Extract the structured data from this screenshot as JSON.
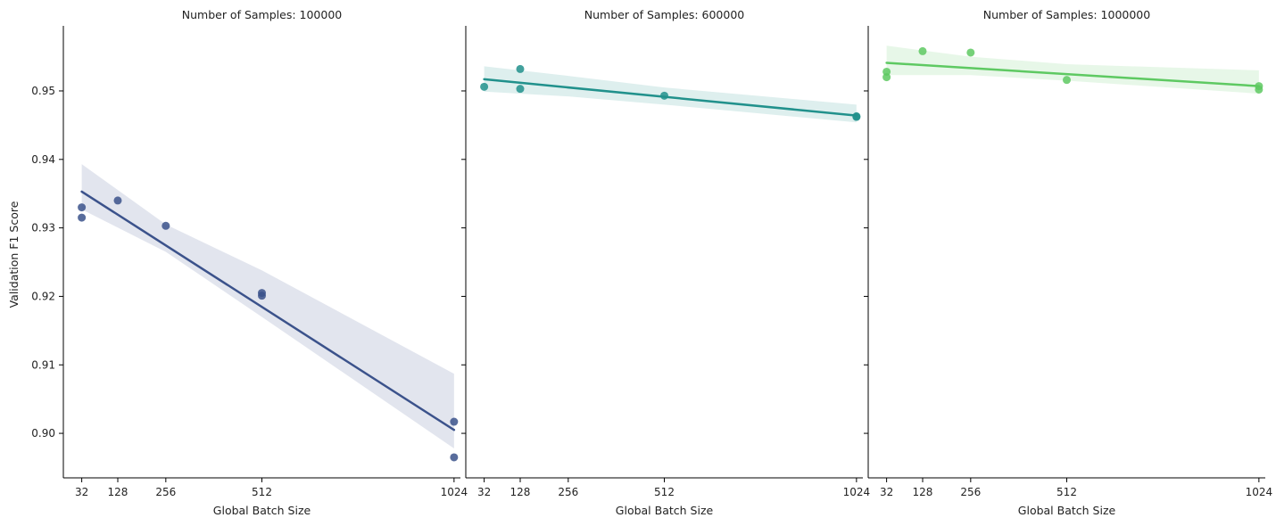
{
  "chart_data": [
    {
      "type": "scatter",
      "title": "Number of Samples: 100000",
      "xlabel": "Global Batch Size",
      "ylabel": "Validation F1 Score",
      "x_ticks": [
        32,
        128,
        256,
        512,
        1024
      ],
      "y_ticks": [
        0.9,
        0.91,
        0.92,
        0.93,
        0.94,
        0.95
      ],
      "y_tick_labels": [
        "0.90",
        "0.91",
        "0.92",
        "0.93",
        "0.94",
        "0.95"
      ],
      "xlim": [
        -17,
        1041
      ],
      "ylim": [
        0.8935,
        0.9595
      ],
      "color": "#3b528b",
      "points": {
        "x": [
          32,
          32,
          128,
          256,
          512,
          512,
          1024,
          1024
        ],
        "y": [
          0.933,
          0.9315,
          0.934,
          0.9303,
          0.9205,
          0.9201,
          0.9017,
          0.8965
        ]
      },
      "fit_line": {
        "x": [
          32,
          1024
        ],
        "y": [
          0.9353,
          0.9005
        ]
      },
      "confidence_band": {
        "x": [
          32,
          256,
          512,
          1024
        ],
        "upper": [
          0.9393,
          0.9305,
          0.9238,
          0.9087
        ],
        "lower": [
          0.9327,
          0.9265,
          0.917,
          0.8978
        ]
      },
      "grid": false
    },
    {
      "type": "scatter",
      "title": "Number of Samples: 600000",
      "xlabel": "Global Batch Size",
      "ylabel": "",
      "x_ticks": [
        32,
        128,
        256,
        512,
        1024
      ],
      "y_ticks": [
        0.9,
        0.91,
        0.92,
        0.93,
        0.94,
        0.95
      ],
      "y_tick_labels": [
        "",
        "",
        "",
        "",
        "",
        ""
      ],
      "xlim": [
        -17,
        1041
      ],
      "ylim": [
        0.8935,
        0.9595
      ],
      "color": "#21918c",
      "points": {
        "x": [
          32,
          128,
          128,
          512,
          1024,
          1024
        ],
        "y": [
          0.9506,
          0.9532,
          0.9503,
          0.9493,
          0.9463,
          0.9462
        ]
      },
      "fit_line": {
        "x": [
          32,
          1024
        ],
        "y": [
          0.9517,
          0.9464
        ]
      },
      "confidence_band": {
        "x": [
          32,
          256,
          512,
          1024
        ],
        "upper": [
          0.9536,
          0.9522,
          0.9505,
          0.948
        ],
        "lower": [
          0.9499,
          0.9492,
          0.948,
          0.9454
        ]
      },
      "grid": false
    },
    {
      "type": "scatter",
      "title": "Number of Samples: 1000000",
      "xlabel": "Global Batch Size",
      "ylabel": "",
      "x_ticks": [
        32,
        128,
        256,
        512,
        1024
      ],
      "y_ticks": [
        0.9,
        0.91,
        0.92,
        0.93,
        0.94,
        0.95
      ],
      "y_tick_labels": [
        "",
        "",
        "",
        "",
        "",
        ""
      ],
      "xlim": [
        -17,
        1041
      ],
      "ylim": [
        0.8935,
        0.9595
      ],
      "color": "#5ec962",
      "points": {
        "x": [
          32,
          32,
          128,
          256,
          512,
          1024,
          1024
        ],
        "y": [
          0.9528,
          0.952,
          0.9558,
          0.9556,
          0.9516,
          0.9507,
          0.9502
        ]
      },
      "fit_line": {
        "x": [
          32,
          1024
        ],
        "y": [
          0.9541,
          0.9507
        ]
      },
      "confidence_band": {
        "x": [
          32,
          256,
          512,
          1024
        ],
        "upper": [
          0.9566,
          0.955,
          0.9539,
          0.953
        ],
        "lower": [
          0.9523,
          0.9523,
          0.9515,
          0.9496
        ]
      },
      "grid": false
    }
  ]
}
